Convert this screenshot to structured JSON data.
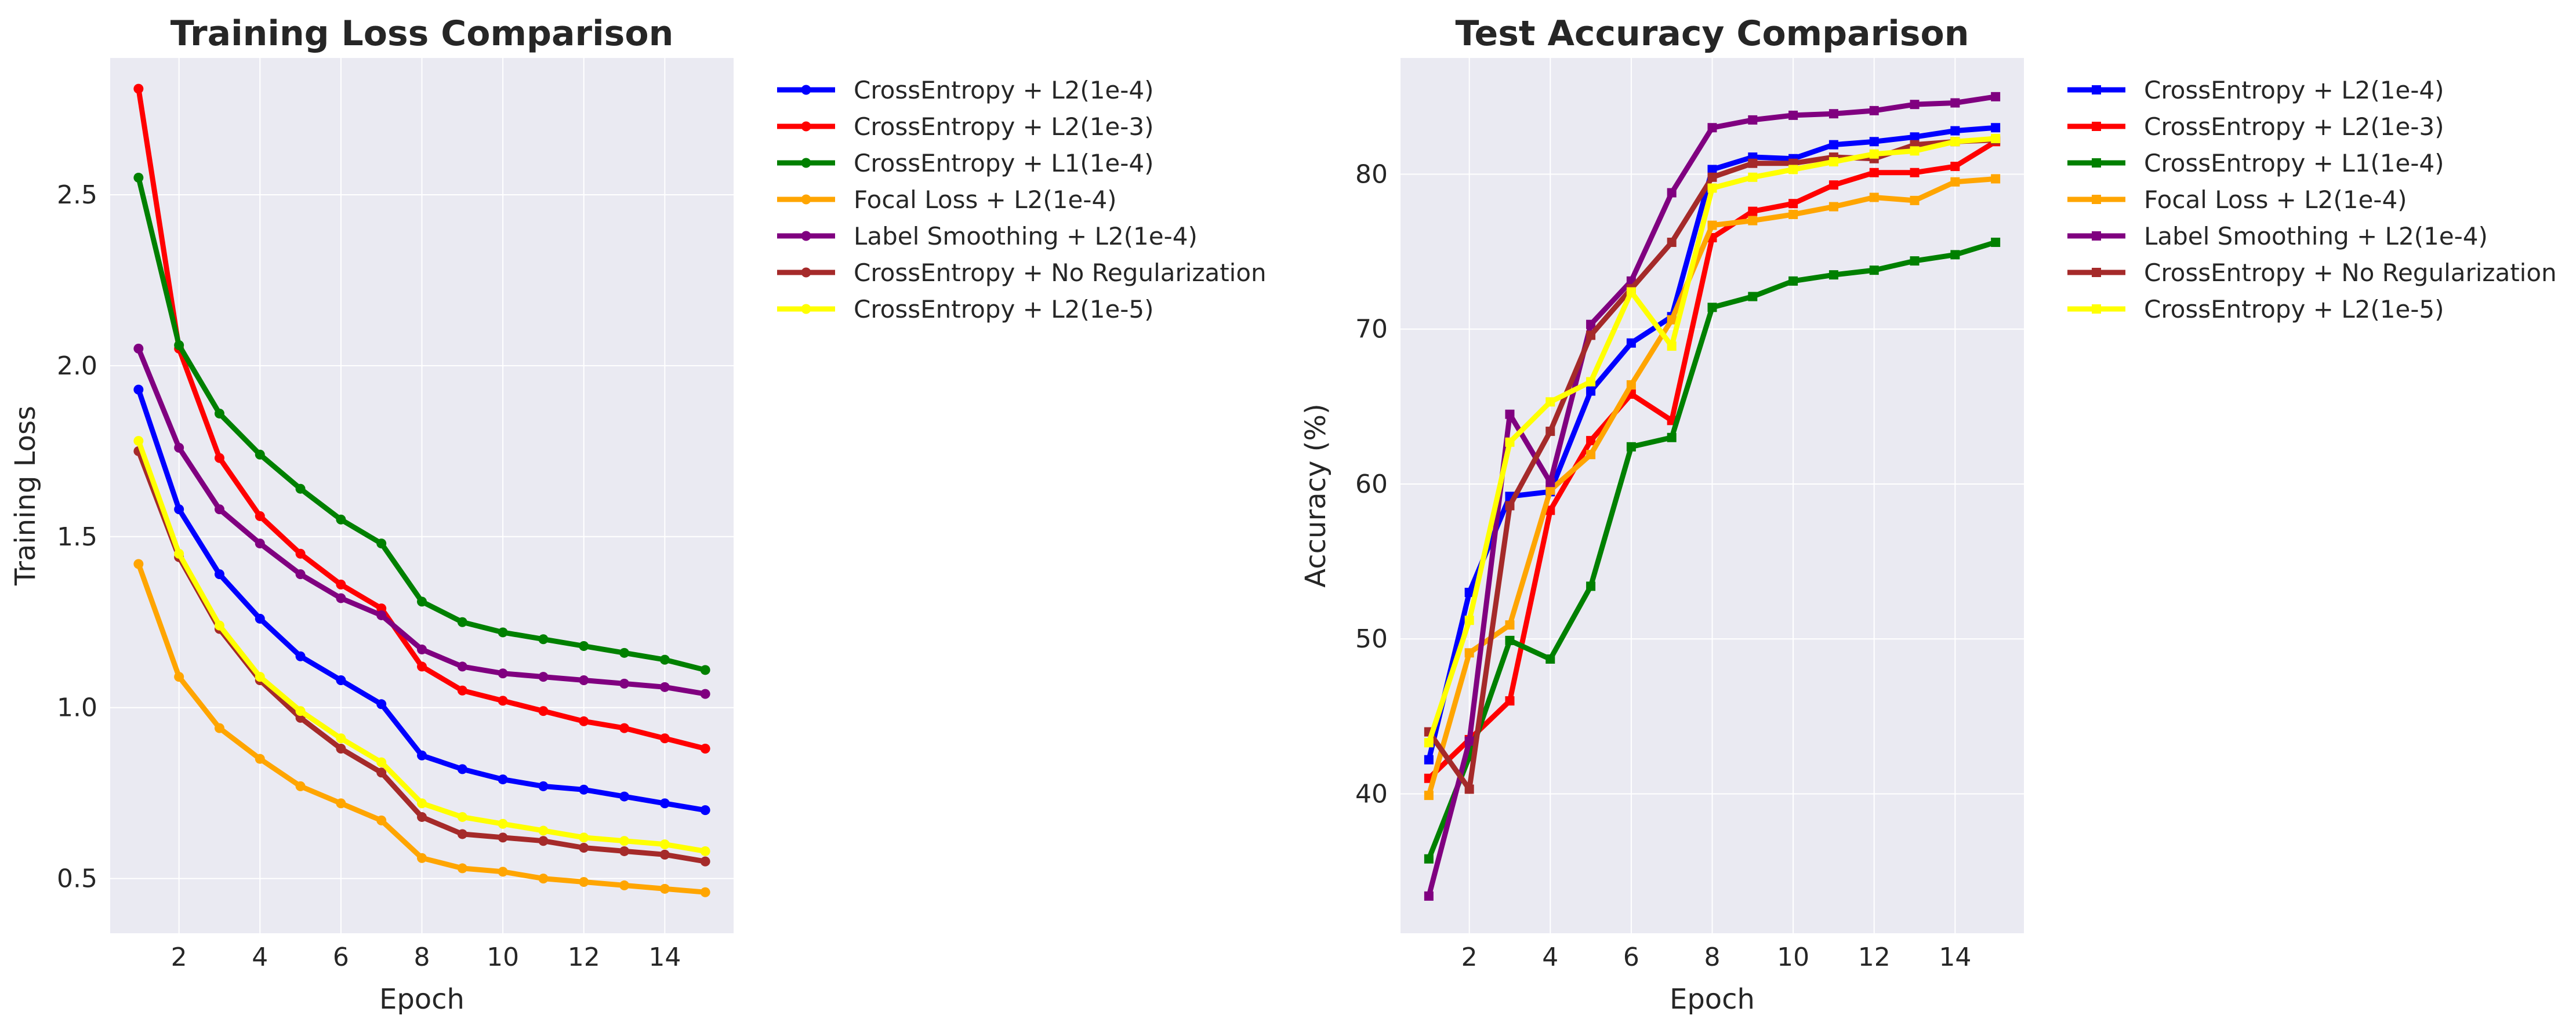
{
  "chart_data": [
    {
      "type": "line",
      "title": "Training Loss Comparison",
      "xlabel": "Epoch",
      "ylabel": "Training Loss",
      "xlim": [
        0.3,
        15.7
      ],
      "ylim": [
        0.34,
        2.9
      ],
      "xticks": [
        2,
        4,
        6,
        8,
        10,
        12,
        14
      ],
      "yticks": [
        0.5,
        1.0,
        1.5,
        2.0,
        2.5
      ],
      "ytick_labels": [
        "0.5",
        "1.0",
        "1.5",
        "2.0",
        "2.5"
      ],
      "grid": true,
      "legend_position": "outside-right",
      "marker": "circle",
      "x": [
        1,
        2,
        3,
        4,
        5,
        6,
        7,
        8,
        9,
        10,
        11,
        12,
        13,
        14,
        15
      ],
      "series": [
        {
          "name": "CrossEntropy + L2(1e-4)",
          "color": "#0000ff",
          "values": [
            1.93,
            1.58,
            1.39,
            1.26,
            1.15,
            1.08,
            1.01,
            0.86,
            0.82,
            0.79,
            0.77,
            0.76,
            0.74,
            0.72,
            0.7
          ]
        },
        {
          "name": "CrossEntropy + L2(1e-3)",
          "color": "#ff0000",
          "values": [
            2.81,
            2.05,
            1.73,
            1.56,
            1.45,
            1.36,
            1.29,
            1.12,
            1.05,
            1.02,
            0.99,
            0.96,
            0.94,
            0.91,
            0.88
          ]
        },
        {
          "name": "CrossEntropy + L1(1e-4)",
          "color": "#008000",
          "values": [
            2.55,
            2.06,
            1.86,
            1.74,
            1.64,
            1.55,
            1.48,
            1.31,
            1.25,
            1.22,
            1.2,
            1.18,
            1.16,
            1.14,
            1.11
          ]
        },
        {
          "name": "Focal Loss + L2(1e-4)",
          "color": "#ffa500",
          "values": [
            1.42,
            1.09,
            0.94,
            0.85,
            0.77,
            0.72,
            0.67,
            0.56,
            0.53,
            0.52,
            0.5,
            0.49,
            0.48,
            0.47,
            0.46
          ]
        },
        {
          "name": "Label Smoothing + L2(1e-4)",
          "color": "#800080",
          "values": [
            2.05,
            1.76,
            1.58,
            1.48,
            1.39,
            1.32,
            1.27,
            1.17,
            1.12,
            1.1,
            1.09,
            1.08,
            1.07,
            1.06,
            1.04
          ]
        },
        {
          "name": "CrossEntropy + No Regularization",
          "color": "#a52a2a",
          "values": [
            1.75,
            1.44,
            1.23,
            1.08,
            0.97,
            0.88,
            0.81,
            0.68,
            0.63,
            0.62,
            0.61,
            0.59,
            0.58,
            0.57,
            0.55
          ]
        },
        {
          "name": "CrossEntropy + L2(1e-5)",
          "color": "#ffff00",
          "values": [
            1.78,
            1.45,
            1.24,
            1.09,
            0.99,
            0.91,
            0.84,
            0.72,
            0.68,
            0.66,
            0.64,
            0.62,
            0.61,
            0.6,
            0.58
          ]
        }
      ]
    },
    {
      "type": "line",
      "title": "Test Accuracy Comparison",
      "xlabel": "Epoch",
      "ylabel": "Accuracy (%)",
      "xlim": [
        0.3,
        15.7
      ],
      "ylim": [
        31,
        87.5
      ],
      "xticks": [
        2,
        4,
        6,
        8,
        10,
        12,
        14
      ],
      "yticks": [
        40,
        50,
        60,
        70,
        80
      ],
      "ytick_labels": [
        "40",
        "50",
        "60",
        "70",
        "80"
      ],
      "grid": true,
      "legend_position": "outside-right",
      "marker": "square",
      "x": [
        1,
        2,
        3,
        4,
        5,
        6,
        7,
        8,
        9,
        10,
        11,
        12,
        13,
        14,
        15
      ],
      "series": [
        {
          "name": "CrossEntropy + L2(1e-4)",
          "color": "#0000ff",
          "values": [
            42.2,
            53.0,
            59.2,
            59.5,
            66.0,
            69.1,
            70.8,
            80.3,
            81.1,
            81.0,
            81.9,
            82.1,
            82.4,
            82.8,
            83.0
          ]
        },
        {
          "name": "CrossEntropy + L2(1e-3)",
          "color": "#ff0000",
          "values": [
            41.0,
            43.5,
            46.0,
            58.3,
            62.8,
            65.8,
            64.1,
            75.9,
            77.6,
            78.1,
            79.3,
            80.1,
            80.1,
            80.5,
            82.1
          ]
        },
        {
          "name": "CrossEntropy + L1(1e-4)",
          "color": "#008000",
          "values": [
            35.8,
            42.4,
            49.9,
            48.7,
            53.4,
            62.4,
            63.0,
            71.4,
            72.1,
            73.1,
            73.5,
            73.8,
            74.4,
            74.8,
            75.6
          ]
        },
        {
          "name": "Focal Loss + L2(1e-4)",
          "color": "#ffa500",
          "values": [
            39.9,
            49.1,
            50.9,
            59.6,
            61.9,
            66.4,
            70.6,
            76.7,
            77.0,
            77.4,
            77.9,
            78.5,
            78.3,
            79.5,
            79.7
          ]
        },
        {
          "name": "Label Smoothing + L2(1e-4)",
          "color": "#800080",
          "values": [
            33.4,
            43.4,
            64.5,
            60.1,
            70.3,
            73.1,
            78.8,
            83.0,
            83.5,
            83.8,
            83.9,
            84.1,
            84.5,
            84.6,
            85.0
          ]
        },
        {
          "name": "CrossEntropy + No Regularization",
          "color": "#a52a2a",
          "values": [
            44.0,
            40.3,
            58.6,
            63.4,
            69.6,
            72.6,
            75.6,
            79.8,
            80.7,
            80.7,
            81.1,
            81.0,
            81.9,
            82.1,
            82.2
          ]
        },
        {
          "name": "CrossEntropy + L2(1e-5)",
          "color": "#ffff00",
          "values": [
            43.3,
            51.2,
            62.7,
            65.3,
            66.6,
            72.4,
            68.9,
            79.1,
            79.8,
            80.3,
            80.8,
            81.3,
            81.5,
            82.1,
            82.3
          ]
        }
      ]
    }
  ]
}
